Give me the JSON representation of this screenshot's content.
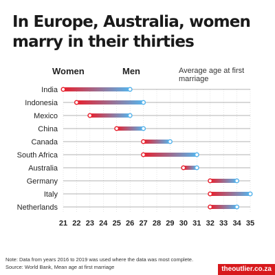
{
  "title": "In Europe, Australia, women marry in their thirties",
  "legend": {
    "women": "Women",
    "men": "Men",
    "subtitle": "Average age at first marriage"
  },
  "colors": {
    "women": "#e8212e",
    "men": "#56b4ec",
    "grid": "#c8c8c8",
    "line": "#666666",
    "text": "#222222"
  },
  "footer": {
    "note": "Note: Data from years 2016 to 2019 was used where the data was most complete.",
    "source": "Source: World Bank, Mean age at first marriage",
    "brand": "theoutlier.co.za"
  },
  "chart_data": {
    "type": "dumbbell",
    "xlim": [
      21,
      35
    ],
    "x_ticks": [
      "21",
      "22",
      "23",
      "24",
      "25",
      "26",
      "27",
      "28",
      "29",
      "30",
      "31",
      "32",
      "33",
      "34",
      "35"
    ],
    "categories": [
      "India",
      "Indonesia",
      "Mexico",
      "China",
      "Canada",
      "South Africa",
      "Australia",
      "Germany",
      "Italy",
      "Netherlands"
    ],
    "series": [
      {
        "name": "Women",
        "values": [
          21,
          22,
          23,
          25,
          27,
          27,
          30,
          32,
          32,
          32
        ]
      },
      {
        "name": "Men",
        "values": [
          26,
          27,
          26,
          27,
          29,
          31,
          31,
          34,
          35,
          34
        ]
      }
    ],
    "legend_position": "top",
    "grid": true
  }
}
